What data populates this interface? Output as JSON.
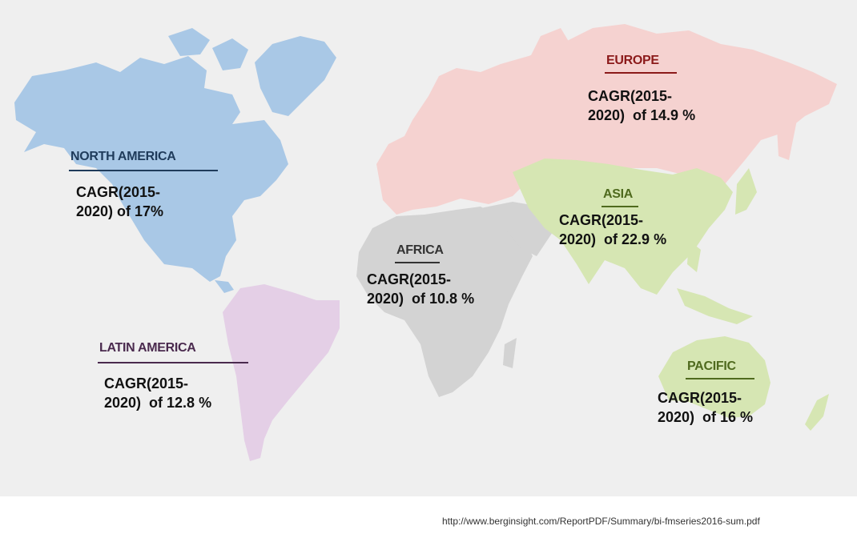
{
  "map": {
    "regions": [
      {
        "key": "north_america",
        "name": "NORTH AMERICA",
        "cagr_line1": "CAGR(2015-",
        "cagr_line2": "2020) of 17%",
        "fill": "#a9c8e6",
        "title_color": "#1f3b5b"
      },
      {
        "key": "europe",
        "name": "EUROPE",
        "cagr_line1": "CAGR(2015-",
        "cagr_line2": "2020)  of 14.9 %",
        "fill": "#f5d2d0",
        "title_color": "#8b1a1a"
      },
      {
        "key": "asia",
        "name": "ASIA",
        "cagr_line1": "CAGR(2015-",
        "cagr_line2": "2020)  of 22.9 %",
        "fill": "#d6e6b3",
        "title_color": "#4f6a1e"
      },
      {
        "key": "africa",
        "name": "AFRICA",
        "cagr_line1": "CAGR(2015-",
        "cagr_line2": "2020)  of 10.8 %",
        "fill": "#d3d3d3",
        "title_color": "#333333"
      },
      {
        "key": "latin_america",
        "name": "LATIN AMERICA",
        "cagr_line1": "CAGR(2015-",
        "cagr_line2": "2020)  of 12.8 %",
        "fill": "#e4cfe6",
        "title_color": "#4a2a4e"
      },
      {
        "key": "pacific",
        "name": "PACIFIC",
        "cagr_line1": "CAGR(2015-",
        "cagr_line2": "2020)  of 16 %",
        "fill": "#d6e6b3",
        "title_color": "#4f6a1e"
      }
    ]
  },
  "footer": {
    "source_url": "http://www.berginsight.com/ReportPDF/Summary/bi-fmseries2016-sum.pdf"
  }
}
